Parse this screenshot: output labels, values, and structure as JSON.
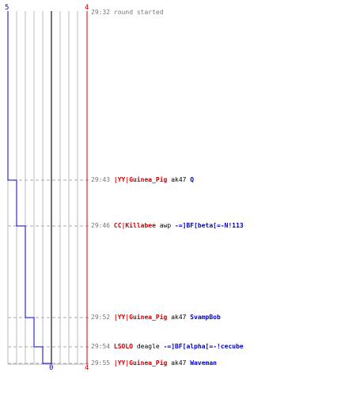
{
  "colors": {
    "team_a": "#0000cc",
    "team_b": "#cc0000",
    "grid": "#bbbbbb",
    "dashed": "#aaaaaa",
    "center": "#444444",
    "time": "#777777"
  },
  "counts": {
    "team_a_start": "5",
    "team_a_end": "0",
    "team_b_start": "4",
    "team_b_end": "4"
  },
  "round_start": {
    "time": "29:32",
    "text": "round started"
  },
  "events": [
    {
      "time": "29:43",
      "killer": "|YY|Guinea_Pig",
      "weapon": "ak47",
      "victim": "Q",
      "killer_team": "b",
      "victim_team": "a"
    },
    {
      "time": "29:46",
      "killer": "CC|Killabee",
      "weapon": "awp",
      "victim": "-=]BF[beta[=-N!113",
      "killer_team": "b",
      "victim_team": "a"
    },
    {
      "time": "29:52",
      "killer": "|YY|Guinea_Pig",
      "weapon": "ak47",
      "victim": "SvampBob",
      "killer_team": "b",
      "victim_team": "a"
    },
    {
      "time": "29:54",
      "killer": "LSOLO",
      "weapon": "deagle",
      "victim": "-=]BF[alpha[=-!cecube",
      "killer_team": "b",
      "victim_team": "a"
    },
    {
      "time": "29:55",
      "killer": "|YY|Guinea_Pig",
      "weapon": "ak47",
      "victim": "Waveman",
      "killer_team": "b",
      "victim_team": "a"
    }
  ]
}
